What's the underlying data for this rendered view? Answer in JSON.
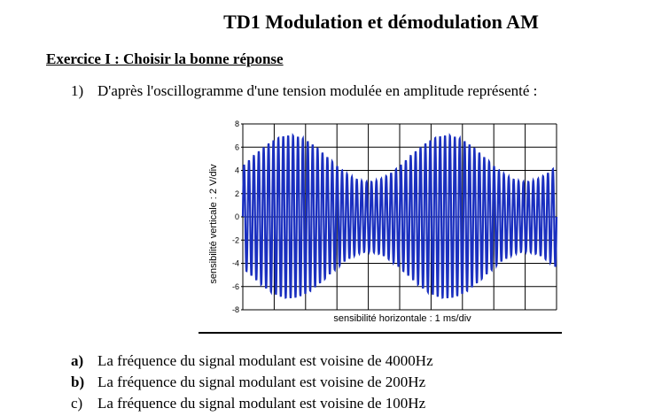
{
  "title": "TD1 Modulation et démodulation AM",
  "exercise_heading": "Exercice I : Choisir la bonne réponse",
  "question": {
    "number": "1)",
    "text": "D'après l'oscillogramme d'une tension modulée en amplitude représenté :"
  },
  "chart_data": {
    "type": "line",
    "ylabel": "sensibilité verticale : 2 V/div",
    "xlabel": "sensibilité horizontale : 1 ms/div",
    "y_ticks": [
      "8",
      "6",
      "4",
      "2",
      "0",
      "-2",
      "-4",
      "-6",
      "-8"
    ],
    "ylim": [
      -8,
      8
    ],
    "x_divisions": 10,
    "grid": true,
    "line_color": "#1a2fbf",
    "series": [
      {
        "carrier_cycles": 64,
        "envelope_min": 3,
        "envelope_max": 7,
        "envelope_cycles": 2,
        "envelope_phase_divisions": 1.5
      }
    ]
  },
  "answers": [
    {
      "label": "a)",
      "text": "La fréquence du signal modulant est voisine de 4000Hz"
    },
    {
      "label": "b)",
      "text": "La fréquence du signal modulant est voisine de 200Hz"
    },
    {
      "label": "c)",
      "text": "La fréquence du signal modulant est voisine de 100Hz"
    }
  ]
}
